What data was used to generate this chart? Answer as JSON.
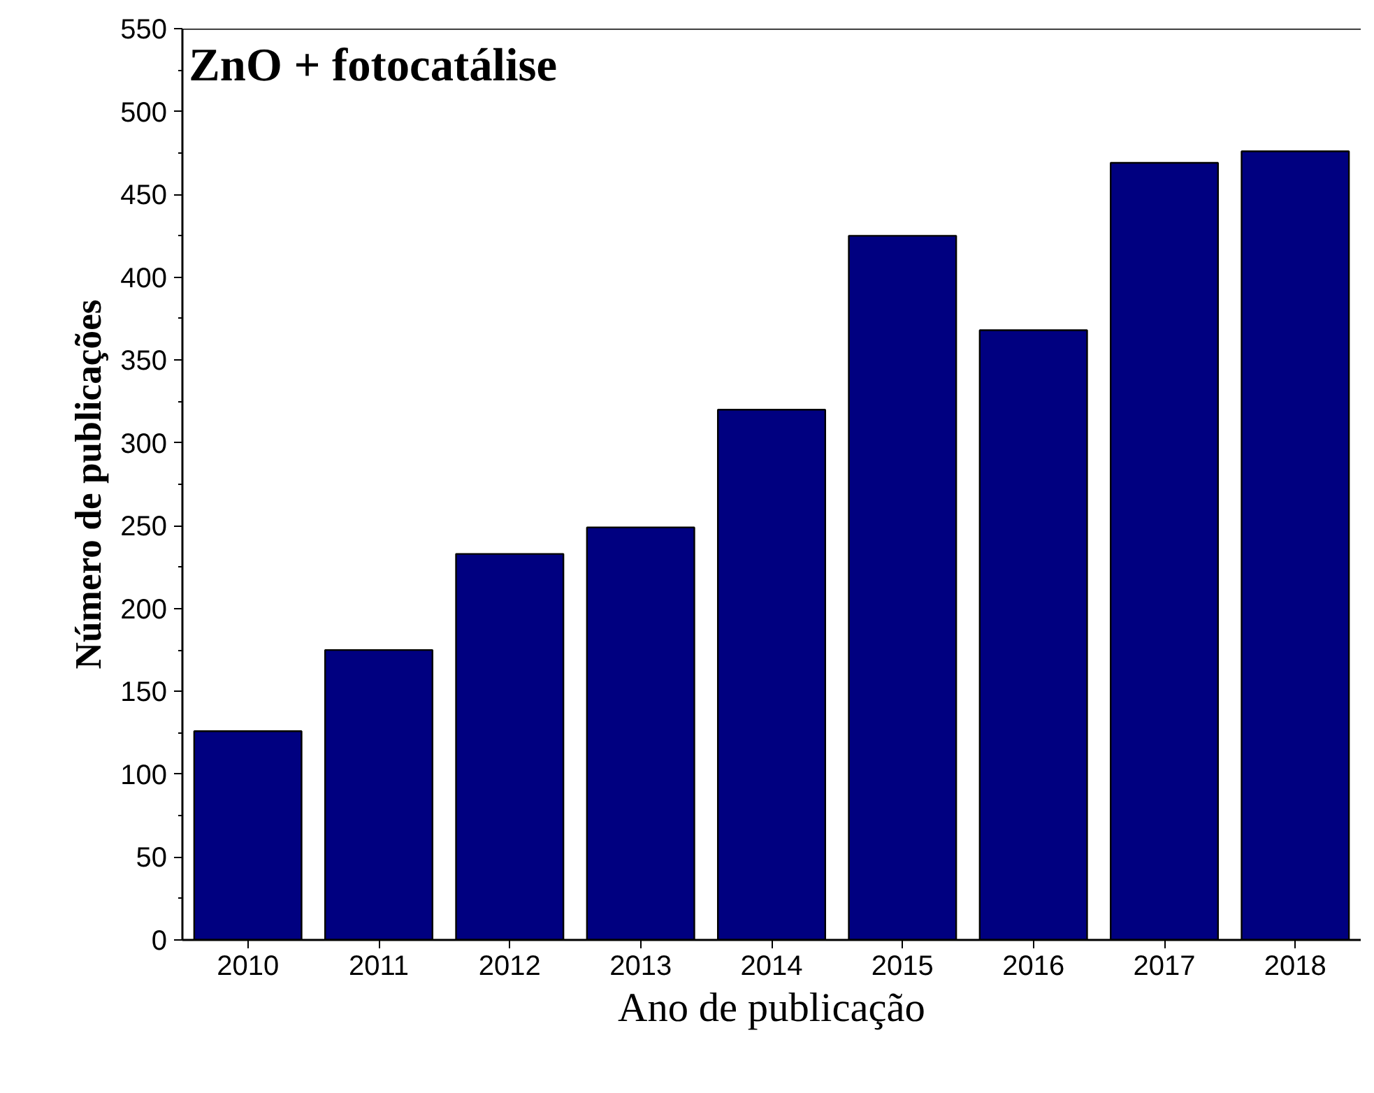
{
  "chart_data": {
    "type": "bar",
    "title": "ZnO + fotocatálise",
    "xlabel": "Ano de publicação",
    "ylabel": "Número de publicações",
    "categories": [
      "2010",
      "2011",
      "2012",
      "2013",
      "2014",
      "2015",
      "2016",
      "2017",
      "2018"
    ],
    "values": [
      126,
      175,
      233,
      249,
      320,
      425,
      368,
      469,
      476
    ],
    "color": "#000080",
    "ylim": [
      0,
      550
    ],
    "yticks": [
      0,
      50,
      100,
      150,
      200,
      250,
      300,
      350,
      400,
      450,
      500,
      550
    ],
    "grid": false
  }
}
